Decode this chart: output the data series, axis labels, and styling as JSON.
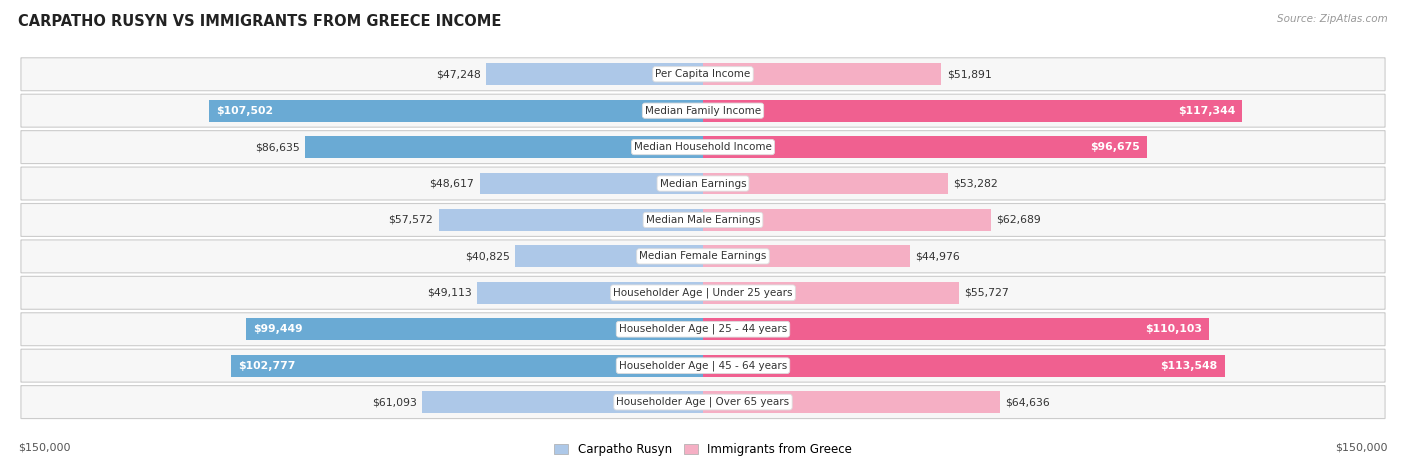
{
  "title": "CARPATHO RUSYN VS IMMIGRANTS FROM GREECE INCOME",
  "source": "Source: ZipAtlas.com",
  "categories": [
    "Per Capita Income",
    "Median Family Income",
    "Median Household Income",
    "Median Earnings",
    "Median Male Earnings",
    "Median Female Earnings",
    "Householder Age | Under 25 years",
    "Householder Age | 25 - 44 years",
    "Householder Age | 45 - 64 years",
    "Householder Age | Over 65 years"
  ],
  "left_values": [
    47248,
    107502,
    86635,
    48617,
    57572,
    40825,
    49113,
    99449,
    102777,
    61093
  ],
  "right_values": [
    51891,
    117344,
    96675,
    53282,
    62689,
    44976,
    55727,
    110103,
    113548,
    64636
  ],
  "left_labels": [
    "$47,248",
    "$107,502",
    "$86,635",
    "$48,617",
    "$57,572",
    "$40,825",
    "$49,113",
    "$99,449",
    "$102,777",
    "$61,093"
  ],
  "right_labels": [
    "$51,891",
    "$117,344",
    "$96,675",
    "$53,282",
    "$62,689",
    "$44,976",
    "$55,727",
    "$110,103",
    "$113,548",
    "$64,636"
  ],
  "left_color_light": "#adc8e8",
  "left_color_dark": "#6aaad4",
  "right_color_light": "#f5afc4",
  "right_color_dark": "#f06090",
  "left_label_inside": [
    false,
    true,
    false,
    false,
    false,
    false,
    false,
    true,
    true,
    false
  ],
  "right_label_inside": [
    false,
    true,
    true,
    false,
    false,
    false,
    false,
    true,
    true,
    false
  ],
  "max_value": 150000,
  "legend_left": "Carpatho Rusyn",
  "legend_right": "Immigrants from Greece",
  "left_axis_label": "$150,000",
  "right_axis_label": "$150,000",
  "threshold_dark": 80000
}
